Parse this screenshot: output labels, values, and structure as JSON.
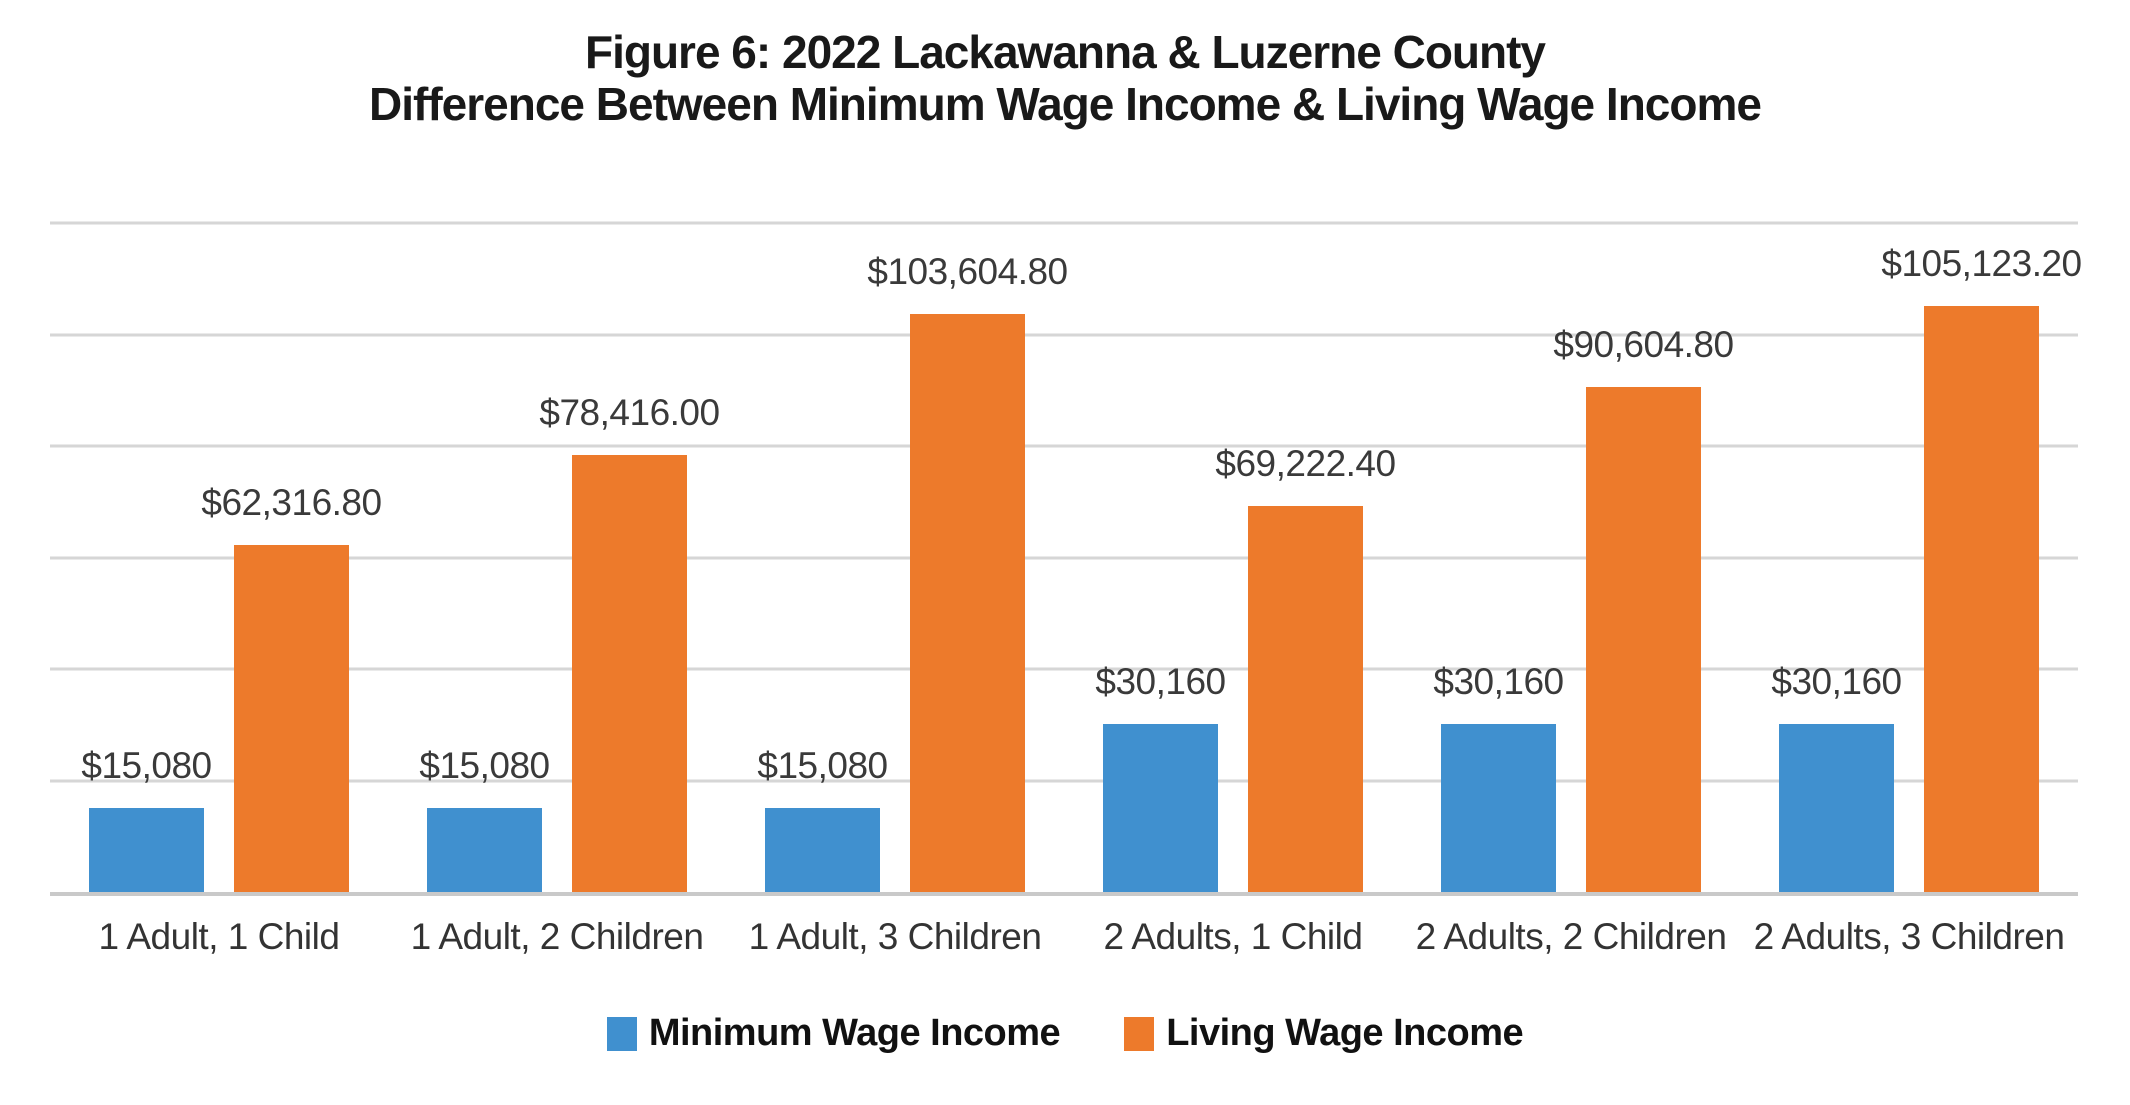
{
  "chart": {
    "title_line1": "Figure 6: 2022 Lackawanna & Luzerne County",
    "title_line2": "Difference Between Minimum Wage Income & Living Wage Income"
  },
  "chart_data": {
    "type": "bar",
    "title": "Figure 6: 2022 Lackawanna & Luzerne County Difference Between Minimum Wage Income & Living Wage Income",
    "categories": [
      "1 Adult, 1 Child",
      "1 Adult, 2 Children",
      "1 Adult, 3 Children",
      "2 Adults, 1 Child",
      "2 Adults, 2 Children",
      "2 Adults, 3 Children"
    ],
    "series": [
      {
        "name": "Minimum Wage Income",
        "key": "minimum-wage",
        "color": "#4090cf",
        "values": [
          15080,
          15080,
          15080,
          30160,
          30160,
          30160
        ],
        "labels": [
          "$15,080",
          "$15,080",
          "$15,080",
          "$30,160",
          "$30,160",
          "$30,160"
        ]
      },
      {
        "name": "Living Wage Income",
        "key": "living-wage",
        "color": "#ed7a2b",
        "values": [
          62316.8,
          78416.0,
          103604.8,
          69222.4,
          90604.8,
          105123.2
        ],
        "labels": [
          "$62,316.80",
          "$78,416.00",
          "$103,604.80",
          "$69,222.40",
          "$90,604.80",
          "$105,123.20"
        ]
      }
    ],
    "xlabel": "",
    "ylabel": "",
    "ylim": [
      0,
      120000
    ],
    "gridline_step": 20000,
    "grid": true,
    "y_axis_tick_labels_visible": false,
    "legend_position": "bottom",
    "gridline_color": "#d6d6d6",
    "label_color": "#3a3a3a",
    "title_color": "#191919"
  }
}
